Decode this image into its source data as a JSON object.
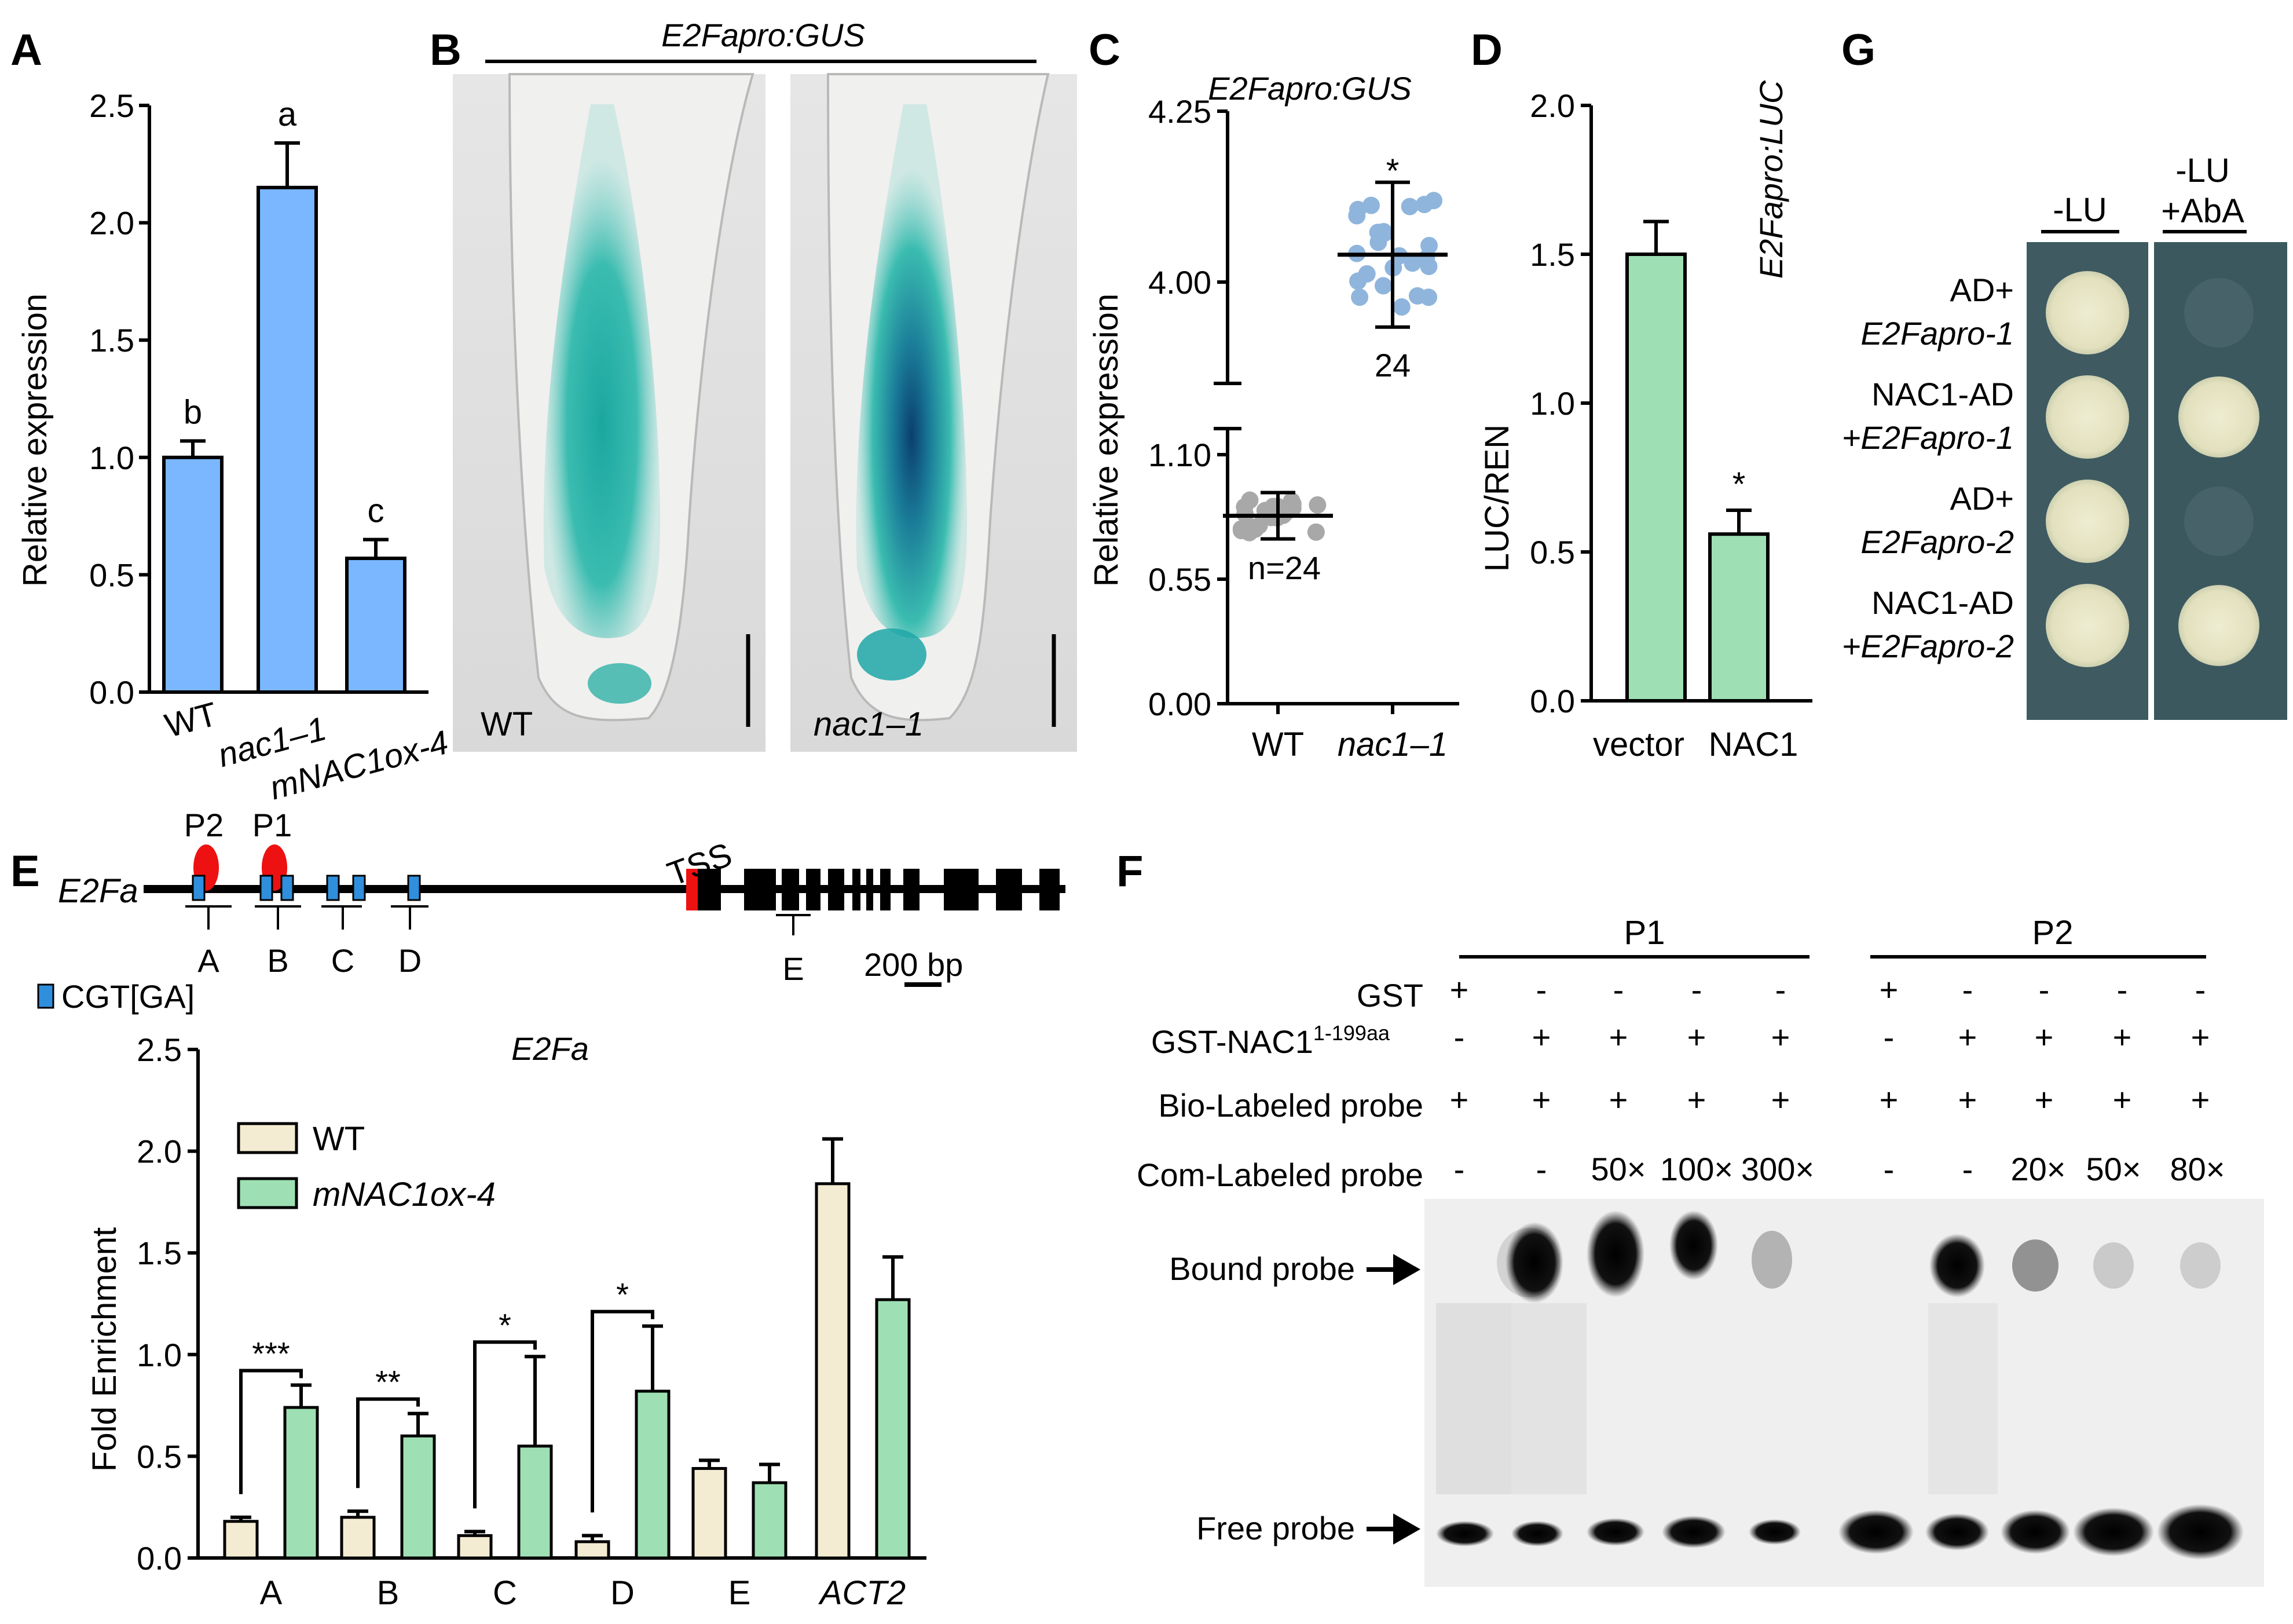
{
  "panels": {
    "A": "A",
    "B": "B",
    "C": "C",
    "D": "D",
    "E": "E",
    "F": "F",
    "G": "G"
  },
  "colors": {
    "blue_bar": "#7ab7ff",
    "green_bar": "#9ee0b4",
    "beige_bar": "#f3ecd2",
    "dot_wt": "#a8a8a8",
    "dot_nac": "#8fb5dc",
    "cgt_box": "#2f8fdc",
    "red_site": "#ee1111",
    "gus_stain": "#3bbcb0",
    "gel_bg": "#efefef",
    "yeast_plate": "#3f5a61",
    "yeast_colony": "#e7e5c6"
  },
  "chart_data": [
    {
      "panel": "A",
      "type": "bar",
      "title": "",
      "categories": [
        "WT",
        "nac1–1",
        "mNAC1ox-4"
      ],
      "values": [
        1.0,
        2.15,
        0.57
      ],
      "errors": [
        0.07,
        0.19,
        0.08
      ],
      "letters": [
        "b",
        "a",
        "c"
      ],
      "ylabel": "Relative expression",
      "ylim": [
        0,
        2.5
      ],
      "yticks": [
        "0.0",
        "0.5",
        "1.0",
        "1.5",
        "2.0",
        "2.5"
      ]
    },
    {
      "panel": "C",
      "type": "scatter",
      "title": "E2Fapro:GUS",
      "categories": [
        "WT",
        "nac1–1"
      ],
      "means": [
        0.83,
        4.04
      ],
      "errors": [
        0.08,
        0.06
      ],
      "n_labels": [
        "n=24",
        "24"
      ],
      "significance": "*",
      "ylabel": "Relative expression",
      "yticks": [
        "0.00",
        "0.55",
        "1.10",
        "4.00",
        "4.25"
      ],
      "axis_break": true
    },
    {
      "panel": "D",
      "type": "bar",
      "title": "E2Fapro:LUC",
      "categories": [
        "vector",
        "NAC1"
      ],
      "values": [
        1.5,
        0.56
      ],
      "errors": [
        0.11,
        0.08
      ],
      "significance": [
        "",
        "*"
      ],
      "ylabel": "LUC/REN",
      "ylim": [
        0,
        2.0
      ],
      "yticks": [
        "0.0",
        "0.5",
        "1.0",
        "1.5",
        "2.0"
      ]
    },
    {
      "panel": "E",
      "type": "bar",
      "title": "E2Fa",
      "categories": [
        "A",
        "B",
        "C",
        "D",
        "E",
        "ACT2"
      ],
      "series": [
        {
          "name": "WT",
          "values": [
            0.18,
            0.2,
            0.11,
            0.08,
            0.44,
            1.84
          ],
          "errors": [
            0.02,
            0.03,
            0.02,
            0.03,
            0.04,
            0.22
          ]
        },
        {
          "name": "mNAC1ox-4",
          "values": [
            0.74,
            0.6,
            0.55,
            0.82,
            0.37,
            1.27
          ],
          "errors": [
            0.11,
            0.11,
            0.44,
            0.32,
            0.09,
            0.21
          ]
        }
      ],
      "significance": [
        "***",
        "**",
        "*",
        "*",
        "",
        ""
      ],
      "ylabel": "Fold Enrichment",
      "ylim": [
        0,
        2.5
      ],
      "yticks": [
        "0.0",
        "0.5",
        "1.0",
        "1.5",
        "2.0",
        "2.5"
      ]
    }
  ],
  "panel_b": {
    "title": "E2Fapro:GUS",
    "left_label": "WT",
    "right_label": "nac1–1"
  },
  "gene_map": {
    "gene": "E2Fa",
    "tss": "TSS",
    "p2": "P2",
    "p1": "P1",
    "regions": [
      "A",
      "B",
      "C",
      "D",
      "E"
    ],
    "scale": "200 bp",
    "legend": "CGT[GA]"
  },
  "emsa": {
    "group1": "P1",
    "group2": "P2",
    "rows": [
      {
        "label": "GST",
        "p1": [
          "+",
          "-",
          "-",
          "-",
          "-"
        ],
        "p2": [
          "+",
          "-",
          "-",
          "-",
          "-"
        ]
      },
      {
        "label": "GST-NAC1",
        "sup": "1-199aa",
        "p1": [
          "-",
          "+",
          "+",
          "+",
          "+"
        ],
        "p2": [
          "-",
          "+",
          "+",
          "+",
          "+"
        ]
      },
      {
        "label": "Bio-Labeled probe",
        "p1": [
          "+",
          "+",
          "+",
          "+",
          "+"
        ],
        "p2": [
          "+",
          "+",
          "+",
          "+",
          "+"
        ]
      },
      {
        "label": "Com-Labeled probe",
        "p1": [
          "-",
          "-",
          "50×",
          "100×",
          "300×"
        ],
        "p2": [
          "-",
          "-",
          "20×",
          "50×",
          "80×"
        ]
      }
    ],
    "bound": "Bound probe",
    "free": "Free probe"
  },
  "yeast": {
    "col1": "-LU",
    "col2a": "-LU",
    "col2b": "+AbA",
    "rows": [
      [
        "AD+",
        "E2Fapro-1"
      ],
      [
        "NAC1-AD",
        "+E2Fapro-1"
      ],
      [
        "AD+",
        "E2Fapro-2"
      ],
      [
        "NAC1-AD",
        "+E2Fapro-2"
      ]
    ],
    "growth_col2": [
      false,
      true,
      false,
      true
    ]
  }
}
